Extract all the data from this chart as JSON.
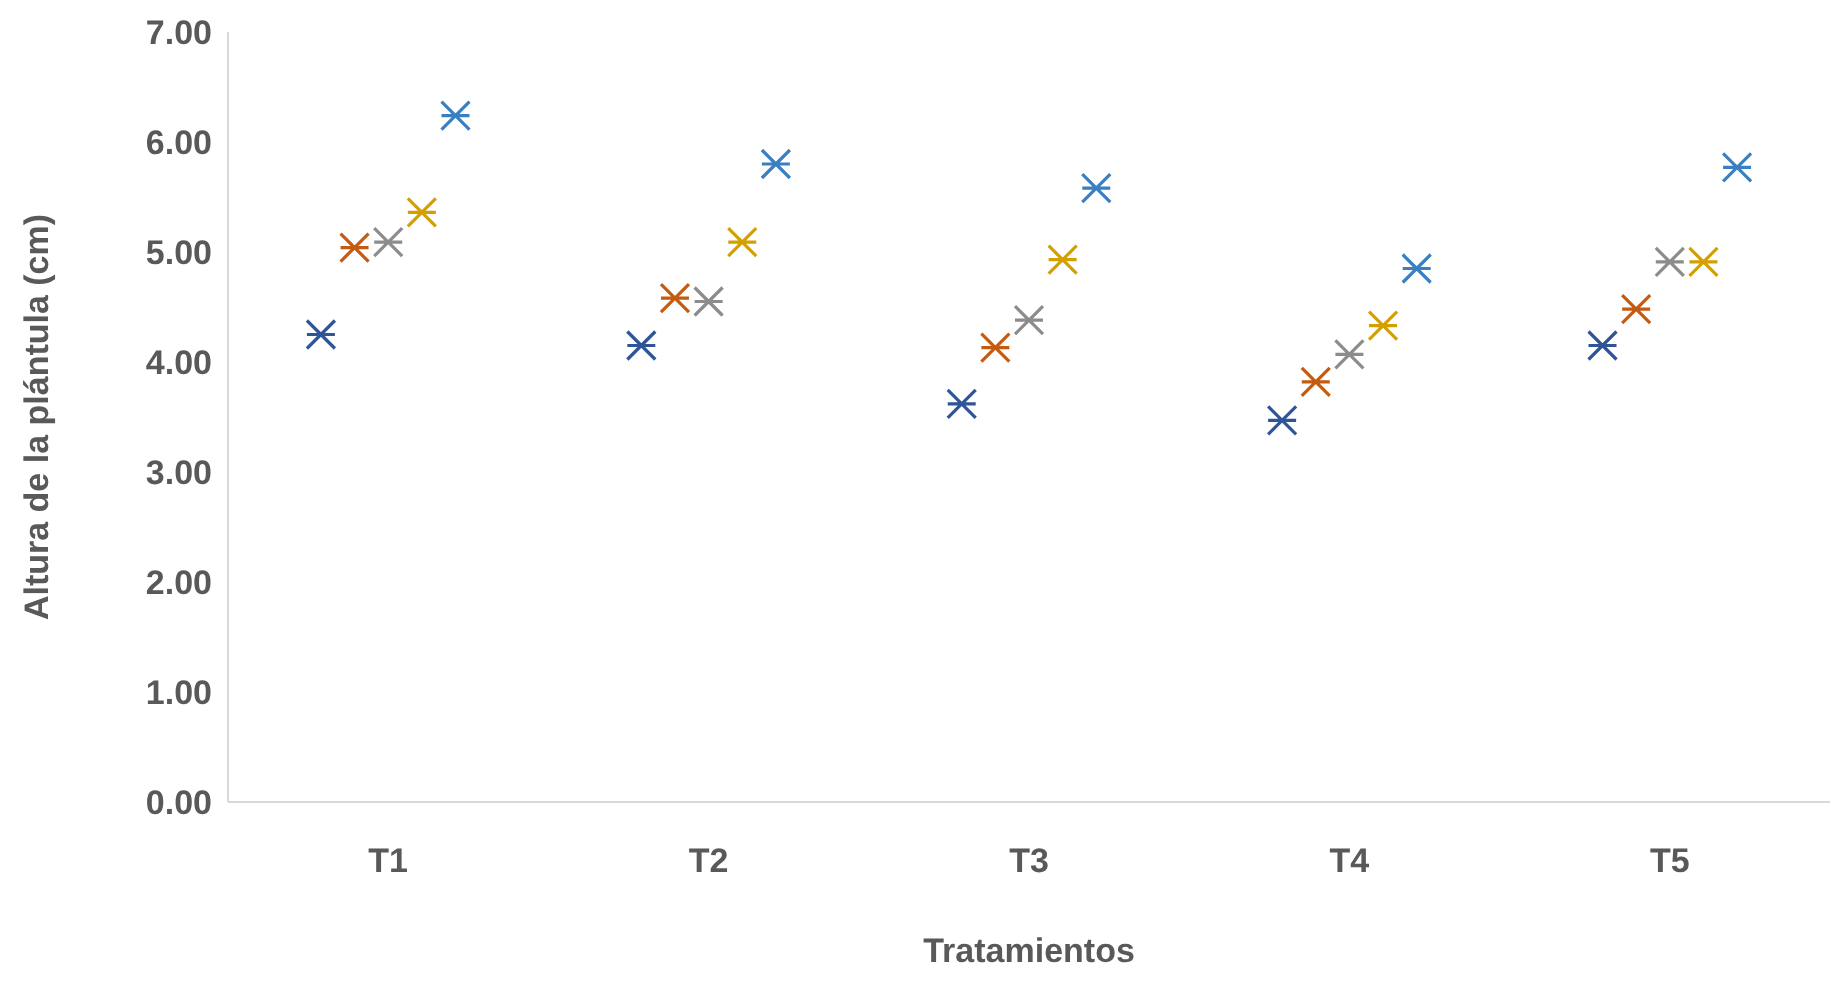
{
  "chart_data": {
    "type": "scatter",
    "xlabel": "Tratamientos",
    "ylabel": "Altura de la plántula (cm)",
    "categories": [
      "T1",
      "T2",
      "T3",
      "T4",
      "T5"
    ],
    "ylim": [
      0,
      7
    ],
    "yticks": [
      {
        "value": 0,
        "label": "0.00"
      },
      {
        "value": 1,
        "label": "1.00"
      },
      {
        "value": 2,
        "label": "2.00"
      },
      {
        "value": 3,
        "label": "3.00"
      },
      {
        "value": 4,
        "label": "4.00"
      },
      {
        "value": 5,
        "label": "5.00"
      },
      {
        "value": 6,
        "label": "6.00"
      },
      {
        "value": 7,
        "label": "7.00"
      }
    ],
    "grid": false,
    "marker": "cross",
    "series": [
      {
        "color": "#2f5597",
        "values": [
          4.25,
          4.15,
          3.62,
          3.47,
          4.15
        ]
      },
      {
        "color": "#c55a11",
        "values": [
          5.04,
          4.58,
          4.13,
          3.82,
          4.48
        ]
      },
      {
        "color": "#8c8c8c",
        "values": [
          5.09,
          4.55,
          4.38,
          4.07,
          4.91
        ]
      },
      {
        "color": "#d4a000",
        "values": [
          5.36,
          5.09,
          4.93,
          4.33,
          4.91
        ]
      },
      {
        "color": "#3a7fc1",
        "values": [
          6.24,
          5.8,
          5.58,
          4.85,
          5.77
        ]
      }
    ]
  }
}
